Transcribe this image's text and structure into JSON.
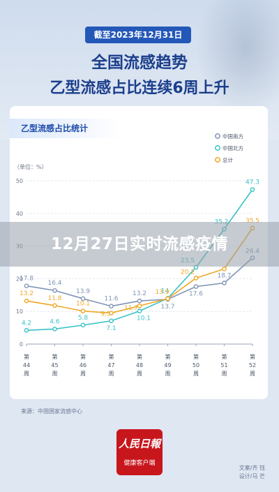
{
  "header": {
    "date_pill": "截至2023年12月31日",
    "title_line1": "全国流感趋势",
    "title_line2": "乙型流感占比连续6周上升"
  },
  "card": {
    "tab_title": "乙型流感占比统计"
  },
  "overlay": {
    "text": "12月27日实时流感疫情"
  },
  "footer": {
    "source": "来源：中国国家流感中心",
    "logo_top": "人民日報",
    "logo_bottom": "健康客户端",
    "credit_text": "文案/齐 钰",
    "credit_design": "设计/马 芒"
  },
  "colors": {
    "south": "#7f93b5",
    "north": "#39c2c8",
    "total": "#f0a623",
    "brand": "#2458b8"
  },
  "chart_data": {
    "type": "line",
    "title": "乙型流感占比统计",
    "ylabel": "（单位：%）",
    "ylim": [
      0,
      50
    ],
    "yticks": [
      "0",
      "10",
      "20",
      "30",
      "40",
      "50"
    ],
    "categories": [
      [
        "第",
        "44",
        "周"
      ],
      [
        "第",
        "45",
        "周"
      ],
      [
        "第",
        "46",
        "周"
      ],
      [
        "第",
        "47",
        "周"
      ],
      [
        "第",
        "48",
        "周"
      ],
      [
        "第",
        "49",
        "周"
      ],
      [
        "第",
        "50",
        "周"
      ],
      [
        "第",
        "51",
        "周"
      ],
      [
        "第",
        "52",
        "周"
      ]
    ],
    "legend_position": "top-right",
    "series": [
      {
        "name": "中国南方",
        "color": "#7f93b5",
        "values": [
          17.8,
          16.4,
          13.9,
          11.6,
          13.2,
          13.7,
          17.6,
          18.7,
          26.4
        ],
        "labels": [
          "17.8",
          "16.4",
          "13.9",
          "11.6",
          "13.2",
          "13.7",
          "17.6",
          "18.7",
          "26.4"
        ]
      },
      {
        "name": "中国北方",
        "color": "#39c2c8",
        "values": [
          4.2,
          4.6,
          5.8,
          7.1,
          10.1,
          14,
          23.5,
          35.2,
          47.3
        ],
        "labels": [
          "4.2",
          "4.6",
          "5.8",
          "7.1",
          "10.1",
          "14",
          "23.5",
          "35.2",
          "47.3"
        ]
      },
      {
        "name": "总计",
        "color": "#f0a623",
        "values": [
          13.2,
          11.8,
          10.1,
          9.5,
          11.7,
          13.9,
          20.2,
          23.0,
          35.5
        ],
        "labels": [
          "13.2",
          "11.8",
          "10.1",
          "9.5",
          "11.7",
          "13.9",
          "20.2",
          "",
          "35.5"
        ]
      }
    ]
  }
}
